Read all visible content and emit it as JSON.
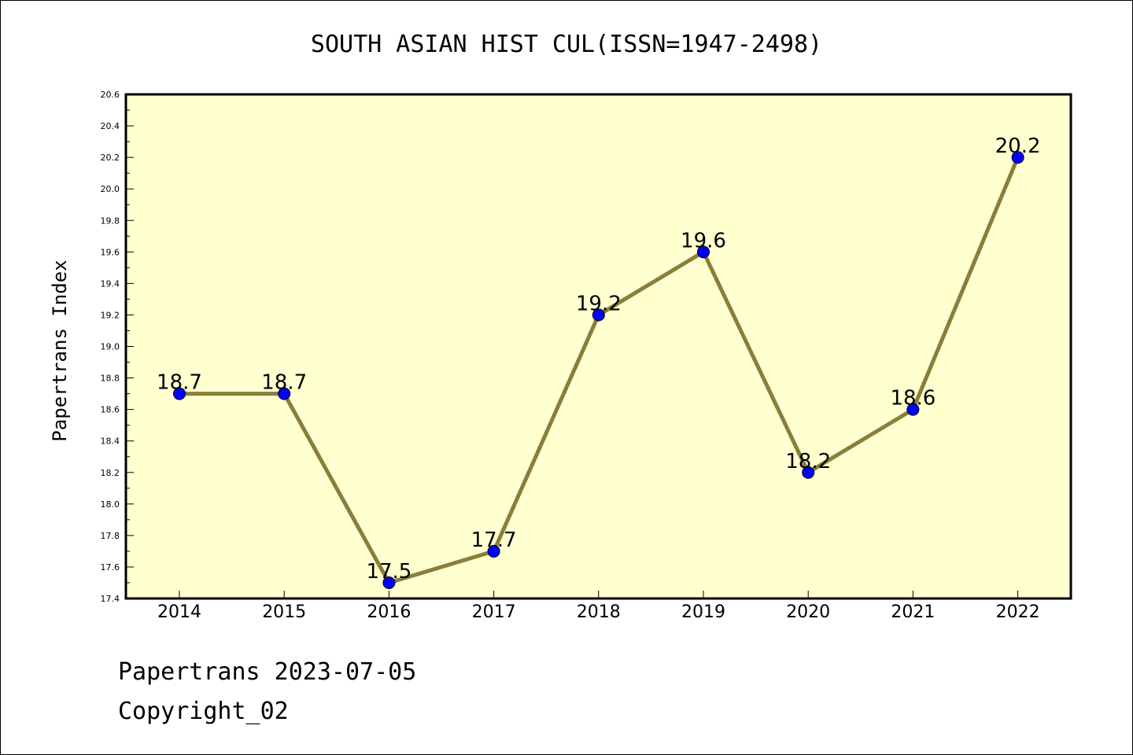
{
  "chart_data": {
    "type": "line",
    "title": "SOUTH ASIAN HIST CUL(ISSN=1947-2498)",
    "ylabel": "Papertrans Index",
    "xlabel": "",
    "categories": [
      "2014",
      "2015",
      "2016",
      "2017",
      "2018",
      "2019",
      "2020",
      "2021",
      "2022"
    ],
    "values": [
      18.7,
      18.7,
      17.5,
      17.7,
      19.2,
      19.6,
      18.2,
      18.6,
      20.2
    ],
    "data_labels": [
      "18.7",
      "18.7",
      "17.5",
      "17.7",
      "19.2",
      "19.6",
      "18.2",
      "18.6",
      "20.2"
    ],
    "ylim": [
      17.4,
      20.6
    ],
    "yticks": [
      "17.4",
      "17.6",
      "17.8",
      "18.0",
      "18.2",
      "18.4",
      "18.6",
      "18.8",
      "19.0",
      "19.2",
      "19.4",
      "19.6",
      "19.8",
      "20.0",
      "20.2",
      "20.4",
      "20.6"
    ],
    "grid": false,
    "colors": {
      "plot_background": "#ffffd0",
      "line": "#8b7d3a",
      "marker": "#0000ff"
    }
  },
  "footer": {
    "line1": "Papertrans 2023-07-05",
    "line2": "Copyright_02"
  }
}
